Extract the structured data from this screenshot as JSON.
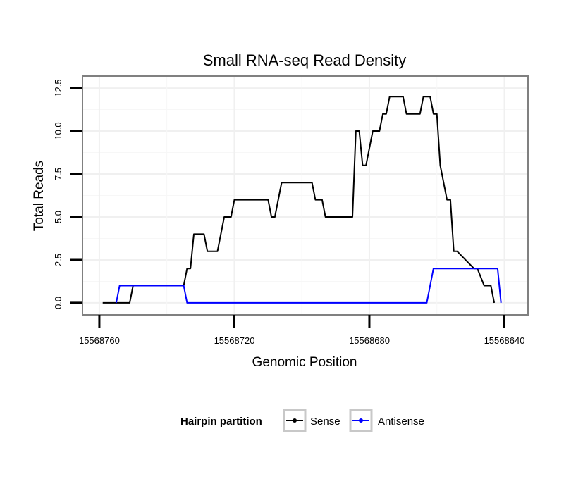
{
  "chart_data": {
    "type": "line",
    "title": "Small RNA-seq Read Density",
    "xlabel": "Genomic Position",
    "ylabel": "Total Reads",
    "x_reversed": true,
    "xlim": [
      15568765,
      15568633
    ],
    "ylim": [
      -0.7,
      13.2
    ],
    "x_ticks": [
      15568760,
      15568720,
      15568680,
      15568640
    ],
    "x_tick_labels": [
      "15568760",
      "15568720",
      "15568680",
      "15568640"
    ],
    "y_ticks": [
      0,
      2.5,
      5,
      7.5,
      10,
      12.5
    ],
    "y_tick_labels": [
      "0.0",
      "2.5",
      "5.0",
      "7.5",
      "10.0",
      "12.5"
    ],
    "grid": true,
    "legend": {
      "title": "Hairpin partition",
      "position": "bottom"
    },
    "series": [
      {
        "name": "Sense",
        "color": "#000000",
        "x": [
          15568759,
          15568751,
          15568750,
          15568745,
          15568735,
          15568734,
          15568733,
          15568732,
          15568729,
          15568728,
          15568725,
          15568723,
          15568721,
          15568720,
          15568719,
          15568710,
          15568709,
          15568708,
          15568706,
          15568703,
          15568697,
          15568696,
          15568694,
          15568693,
          15568685,
          15568684,
          15568683,
          15568682,
          15568681,
          15568679,
          15568677,
          15568676,
          15568675,
          15568674,
          15568670,
          15568669,
          15568665,
          15568664,
          15568662,
          15568661,
          15568660,
          15568659,
          15568657,
          15568656,
          15568655,
          15568654,
          15568649,
          15568648,
          15568646,
          15568644,
          15568643
        ],
        "y": [
          0,
          0,
          1,
          1,
          1,
          2,
          2,
          4,
          4,
          3,
          3,
          5,
          5,
          6,
          6,
          6,
          5,
          5,
          7,
          7,
          7,
          6,
          6,
          5,
          5,
          10,
          10,
          8,
          8,
          10,
          10,
          11,
          11,
          12,
          12,
          11,
          11,
          12,
          12,
          11,
          11,
          8,
          6,
          6,
          3,
          3,
          2,
          2,
          1,
          1,
          0
        ]
      },
      {
        "name": "Antisense",
        "color": "#0000ff",
        "x": [
          15568755,
          15568754,
          15568735,
          15568734,
          15568663,
          15568661,
          15568642,
          15568641
        ],
        "y": [
          0,
          1,
          1,
          0,
          0,
          2,
          2,
          0
        ]
      }
    ]
  }
}
